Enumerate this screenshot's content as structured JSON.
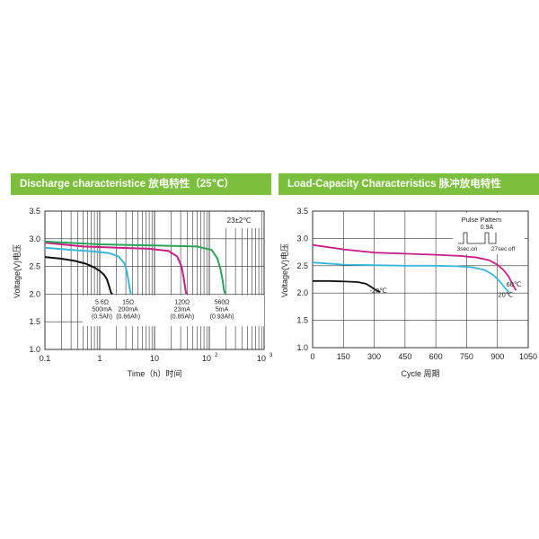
{
  "colors": {
    "banner": "#7cbf3f",
    "black": "#111111",
    "cyan": "#3ab6d8",
    "magenta": "#c81e84",
    "green": "#2aa35a",
    "grid": "#333333"
  },
  "chart_data": [
    {
      "type": "line",
      "title": "Discharge characteristice 放电特性（25℃）",
      "xlabel": "Time（h）时间",
      "ylabel": "Voltage(V)电压",
      "xscale": "log",
      "xlim": [
        0.1,
        1000
      ],
      "ylim": [
        1.0,
        3.5
      ],
      "yticks": [
        "3.5",
        "3.0",
        "2.5",
        "2.0",
        "1.5",
        "1.0"
      ],
      "xticks": [
        {
          "label": "0.1",
          "sup": ""
        },
        {
          "label": "1",
          "sup": ""
        },
        {
          "label": "10",
          "sup": ""
        },
        {
          "label": "10",
          "sup": "2"
        },
        {
          "label": "10",
          "sup": "3"
        }
      ],
      "temp_note": "23±2℃",
      "series": [
        {
          "color_key": "black",
          "x": [
            0.1,
            0.2,
            0.35,
            0.55,
            0.8,
            1.0,
            1.2,
            1.35,
            1.45,
            1.55,
            1.62,
            1.7
          ],
          "y": [
            2.67,
            2.64,
            2.6,
            2.55,
            2.48,
            2.42,
            2.35,
            2.27,
            2.18,
            2.08,
            2.02,
            2.0
          ],
          "labels": [
            "5.6Ω",
            "500mA",
            "(0.5Ah)"
          ]
        },
        {
          "color_key": "cyan",
          "x": [
            0.1,
            0.3,
            0.8,
            1.5,
            2.2,
            2.8,
            3.1,
            3.35,
            3.55,
            3.7
          ],
          "y": [
            2.84,
            2.8,
            2.77,
            2.74,
            2.68,
            2.56,
            2.42,
            2.25,
            2.08,
            2.0
          ],
          "labels": [
            "15Ω",
            "200mA",
            "(0.66Ah)"
          ]
        },
        {
          "color_key": "magenta",
          "x": [
            0.1,
            0.5,
            2,
            8,
            18,
            26,
            31,
            34,
            36.5,
            38
          ],
          "y": [
            2.93,
            2.86,
            2.84,
            2.82,
            2.78,
            2.68,
            2.5,
            2.3,
            2.1,
            2.0
          ],
          "labels": [
            "120Ω",
            "23mA",
            "(0.85Ah)"
          ]
        },
        {
          "color_key": "green",
          "x": [
            0.1,
            1,
            10,
            60,
            110,
            140,
            160,
            175,
            185,
            195
          ],
          "y": [
            2.95,
            2.9,
            2.88,
            2.86,
            2.8,
            2.65,
            2.45,
            2.25,
            2.08,
            2.0
          ],
          "labels": [
            "560Ω",
            "5mA",
            "(0.93Ah)"
          ]
        }
      ]
    },
    {
      "type": "line",
      "title": "Load-Capacity Characteristics 脉冲放电特性",
      "xlabel": "Cycle 周期",
      "ylabel": "Voltage(V)电压",
      "xlim": [
        0,
        1050
      ],
      "ylim": [
        1.0,
        3.5
      ],
      "xticks": [
        "0",
        "150",
        "300",
        "450",
        "600",
        "750",
        "900",
        "1050"
      ],
      "yticks": [
        "3.5",
        "3.0",
        "2.5",
        "2.0",
        "1.5",
        "1.0"
      ],
      "pulse": {
        "title": "Pulse  Pattem",
        "current": "0.9A",
        "on": "3sec.on",
        "off": "27sec.off"
      },
      "series": [
        {
          "color_key": "black",
          "x": [
            0,
            80,
            160,
            220,
            260,
            290,
            310,
            330
          ],
          "y": [
            2.22,
            2.22,
            2.21,
            2.2,
            2.17,
            2.1,
            2.05,
            2.02
          ],
          "label": "-20℃"
        },
        {
          "color_key": "cyan",
          "x": [
            0,
            150,
            300,
            450,
            600,
            700,
            780,
            840,
            880,
            910,
            935,
            955
          ],
          "y": [
            2.56,
            2.52,
            2.51,
            2.5,
            2.5,
            2.49,
            2.47,
            2.42,
            2.33,
            2.22,
            2.1,
            2.02
          ],
          "label": "20℃"
        },
        {
          "color_key": "magenta",
          "x": [
            0,
            150,
            300,
            450,
            600,
            720,
            800,
            860,
            900,
            930,
            955,
            975,
            990
          ],
          "y": [
            2.88,
            2.8,
            2.74,
            2.72,
            2.7,
            2.68,
            2.65,
            2.6,
            2.52,
            2.42,
            2.3,
            2.15,
            2.05
          ],
          "label": "60℃"
        }
      ]
    }
  ]
}
